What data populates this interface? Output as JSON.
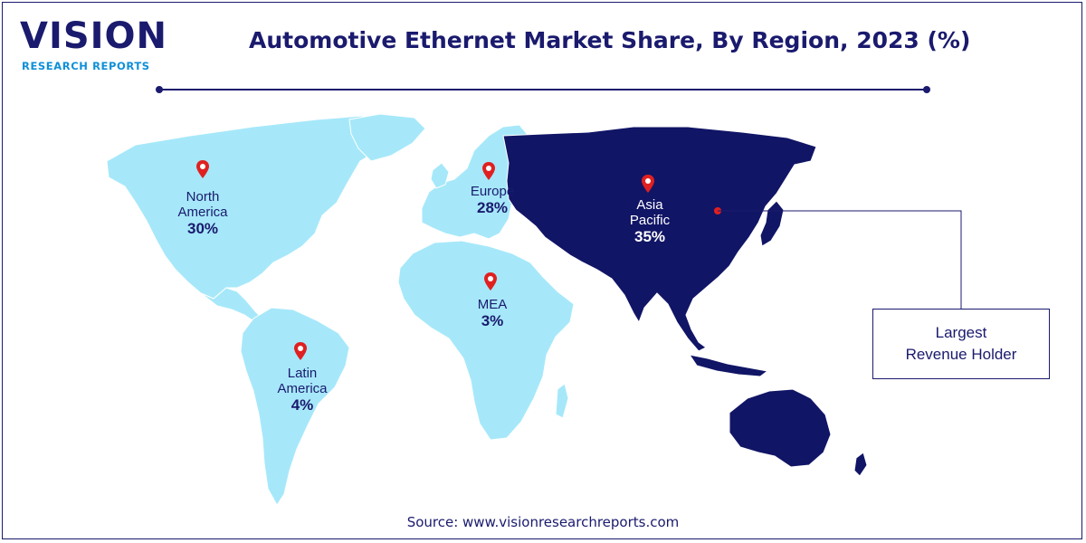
{
  "brand": {
    "name": "VISION",
    "tagline": "RESEARCH REPORTS"
  },
  "title": "Automotive Ethernet Market Share, By Region, 2023 (%)",
  "regions": [
    {
      "key": "north_america",
      "name": "North\nAmerica",
      "value": "30%",
      "share": 30,
      "color": "#a6e8fa"
    },
    {
      "key": "europe",
      "name": "Europe",
      "value": "28%",
      "share": 28,
      "color": "#a6e8fa"
    },
    {
      "key": "asia_pacific",
      "name": "Asia\nPacific",
      "value": "35%",
      "share": 35,
      "color": "#111566"
    },
    {
      "key": "mea",
      "name": "MEA",
      "value": "3%",
      "share": 3,
      "color": "#a6e8fa"
    },
    {
      "key": "latin_america",
      "name": "Latin\nAmerica",
      "value": "4%",
      "share": 4,
      "color": "#a6e8fa"
    }
  ],
  "callout": {
    "text": "Largest\nRevenue Holder",
    "region": "asia_pacific"
  },
  "source": "Source: www.visionresearchreports.com",
  "colors": {
    "navy": "#1a1a6e",
    "light_region": "#a6e8fa",
    "highlight_region": "#111566",
    "pin": "#e02020",
    "accent": "#0f8fd8"
  }
}
